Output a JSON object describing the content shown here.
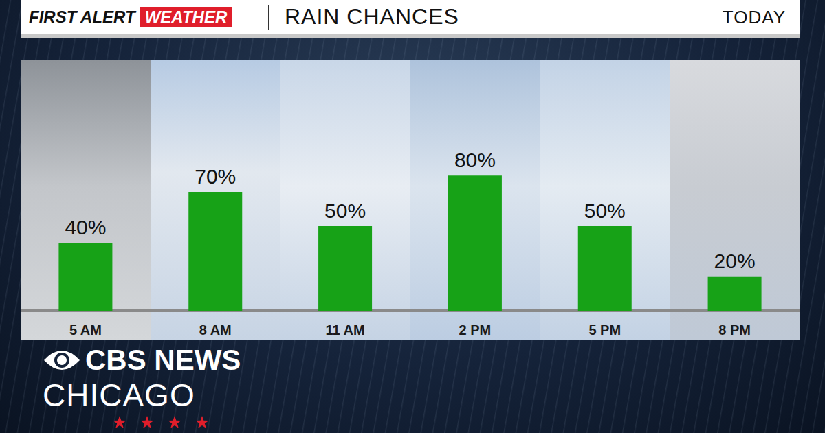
{
  "header": {
    "brand": "FIRST ALERT",
    "brand_tag": "WEATHER",
    "period": "TODAY"
  },
  "logo": {
    "line1": "CBS NEWS",
    "line2": "CHICAGO"
  },
  "chart_data": {
    "type": "bar",
    "title": "RAIN CHANCES",
    "categories": [
      "5 AM",
      "8 AM",
      "11 AM",
      "2 PM",
      "5 PM",
      "8 PM"
    ],
    "values": [
      40,
      70,
      50,
      80,
      50,
      20
    ],
    "value_labels": [
      "40%",
      "70%",
      "50%",
      "80%",
      "50%",
      "20%"
    ],
    "color": "#17a217",
    "ylim": [
      0,
      100
    ],
    "grid": false,
    "data_labels": true,
    "tick_labels": "x"
  }
}
